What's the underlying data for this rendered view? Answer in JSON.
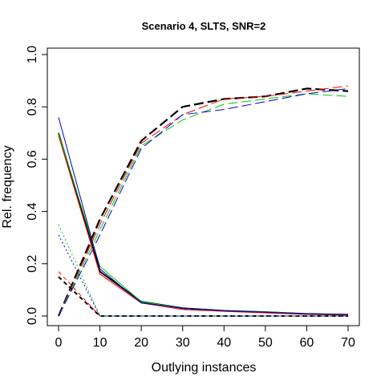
{
  "chart_data": {
    "type": "line",
    "title": "Scenario 4, SLTS, SNR=2",
    "xlabel": "Outlying instances",
    "ylabel": "Rel. frequency",
    "xlim": [
      0,
      70
    ],
    "ylim": [
      0,
      1
    ],
    "xticks": [
      0,
      10,
      20,
      30,
      40,
      50,
      60,
      70
    ],
    "yticks": [
      0.0,
      0.2,
      0.4,
      0.6,
      0.8,
      1.0
    ],
    "ytick_labels": [
      "0.0",
      "0.2",
      "0.4",
      "0.6",
      "0.8",
      "1.0"
    ],
    "grid": false,
    "legend": "none",
    "x": [
      0,
      10,
      20,
      30,
      40,
      50,
      60,
      70
    ],
    "series": [
      {
        "color": "#000000",
        "style": "longdash",
        "width": 2.2,
        "values": [
          0.0,
          0.37,
          0.67,
          0.8,
          0.83,
          0.84,
          0.87,
          0.86
        ]
      },
      {
        "color": "#ff0000",
        "style": "longdash",
        "width": 1,
        "values": [
          0.0,
          0.35,
          0.66,
          0.77,
          0.83,
          0.84,
          0.86,
          0.88
        ]
      },
      {
        "color": "#00cc00",
        "style": "longdash",
        "width": 1,
        "values": [
          0.0,
          0.33,
          0.65,
          0.75,
          0.81,
          0.83,
          0.85,
          0.84
        ]
      },
      {
        "color": "#0000cc",
        "style": "longdash",
        "width": 1,
        "values": [
          0.0,
          0.31,
          0.64,
          0.77,
          0.79,
          0.82,
          0.85,
          0.87
        ]
      },
      {
        "color": "#000000",
        "style": "solid",
        "width": 2,
        "values": [
          0.7,
          0.17,
          0.055,
          0.03,
          0.02,
          0.015,
          0.008,
          0.005
        ]
      },
      {
        "color": "#ff0000",
        "style": "solid",
        "width": 1,
        "values": [
          0.69,
          0.16,
          0.05,
          0.025,
          0.018,
          0.012,
          0.006,
          0.004
        ]
      },
      {
        "color": "#00cc00",
        "style": "solid",
        "width": 1,
        "values": [
          0.7,
          0.19,
          0.055,
          0.03,
          0.02,
          0.016,
          0.008,
          0.006
        ]
      },
      {
        "color": "#0000cc",
        "style": "solid",
        "width": 1,
        "values": [
          0.76,
          0.18,
          0.05,
          0.03,
          0.02,
          0.015,
          0.008,
          0.006
        ]
      },
      {
        "color": "#000000",
        "style": "dashed",
        "width": 2,
        "values": [
          0.15,
          0.0,
          0.0,
          0.0,
          0.0,
          0.0,
          0.0,
          0.0
        ]
      },
      {
        "color": "#ff0000",
        "style": "dashed",
        "width": 1,
        "values": [
          0.17,
          0.0,
          0.0,
          0.0,
          0.0,
          0.0,
          0.0,
          0.0
        ]
      },
      {
        "color": "#00cc00",
        "style": "dotted",
        "width": 1,
        "values": [
          0.35,
          0.0,
          0.0,
          0.0,
          0.0,
          0.0,
          0.0,
          0.0
        ]
      },
      {
        "color": "#0000cc",
        "style": "dotted",
        "width": 1,
        "values": [
          0.31,
          0.0,
          0.0,
          0.0,
          0.0,
          0.0,
          0.0,
          0.0
        ]
      }
    ]
  }
}
